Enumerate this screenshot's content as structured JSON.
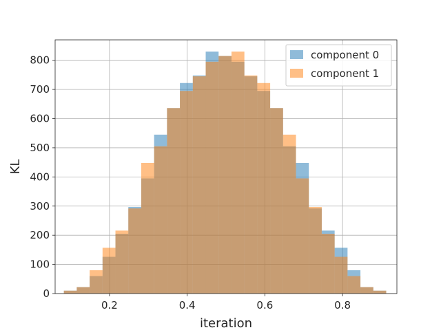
{
  "chart_data": {
    "type": "histogram",
    "xlabel": "iteration",
    "ylabel": "KL",
    "xlim": [
      0.06,
      0.94
    ],
    "ylim": [
      0,
      870
    ],
    "x_ticks": [
      "0.2",
      "0.4",
      "0.6",
      "0.8"
    ],
    "y_ticks": [
      "0",
      "100",
      "200",
      "300",
      "400",
      "500",
      "600",
      "700",
      "800"
    ],
    "grid": true,
    "legend_position": "top-right",
    "bin_edges": [
      0.0825,
      0.1157,
      0.1489,
      0.1821,
      0.2153,
      0.2485,
      0.2817,
      0.3149,
      0.3481,
      0.3813,
      0.4145,
      0.4477,
      0.4809,
      0.5141,
      0.5473,
      0.5805,
      0.6137,
      0.6469,
      0.6801,
      0.7133,
      0.7465,
      0.7797,
      0.8129,
      0.8461,
      0.8793,
      0.9125
    ],
    "series": [
      {
        "name": "component 0",
        "color": "#1f77b4",
        "values": [
          10,
          22,
          60,
          126,
          205,
          297,
          395,
          545,
          636,
          722,
          748,
          830,
          815,
          795,
          745,
          695,
          636,
          505,
          448,
          292,
          216,
          157,
          80,
          22,
          10
        ]
      },
      {
        "name": "component 1",
        "color": "#ff7f0e",
        "values": [
          10,
          22,
          80,
          157,
          216,
          292,
          448,
          505,
          636,
          695,
          745,
          795,
          815,
          830,
          748,
          722,
          636,
          545,
          395,
          297,
          205,
          126,
          60,
          22,
          10
        ]
      }
    ]
  }
}
